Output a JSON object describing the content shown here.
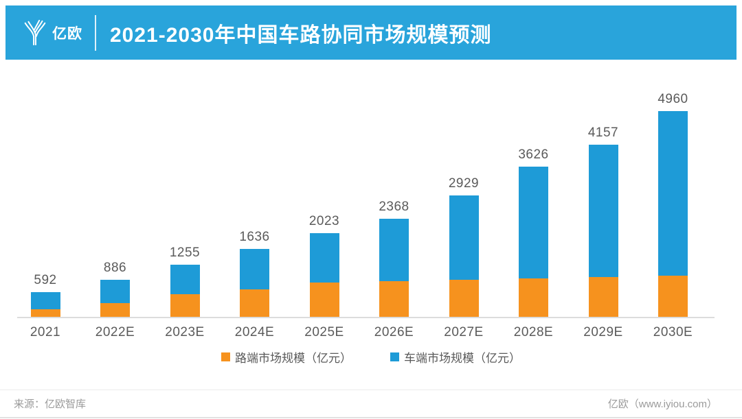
{
  "header": {
    "logo_icon": "iyiou-y-icon",
    "logo_text": "亿欧",
    "title": "2021-2030年中国车路协同市场规模预测"
  },
  "chart_data": {
    "type": "bar",
    "stacked": true,
    "title": "2021-2030年中国车路协同市场规模预测",
    "xlabel": "",
    "ylabel": "",
    "ylim": [
      0,
      5100
    ],
    "grid": false,
    "legend_position": "bottom",
    "categories": [
      "2021",
      "2022E",
      "2023E",
      "2024E",
      "2025E",
      "2026E",
      "2027E",
      "2028E",
      "2029E",
      "2030E"
    ],
    "series": [
      {
        "name": "路端市场规模（亿元）",
        "color": "#F6921E",
        "values": [
          190,
          330,
          545,
          660,
          820,
          855,
          890,
          925,
          960,
          1000
        ]
      },
      {
        "name": "车端市场规模（亿元）",
        "color": "#1E9BD7",
        "values": [
          402,
          556,
          710,
          976,
          1203,
          1513,
          2039,
          2701,
          3197,
          3960
        ]
      }
    ],
    "totals": [
      592,
      886,
      1255,
      1636,
      2023,
      2368,
      2929,
      3626,
      4157,
      4960
    ],
    "total_labels_shown": true
  },
  "colors": {
    "banner_blue": "#29A4DB",
    "bar_blue": "#1E9BD7",
    "bar_orange": "#F6921E",
    "label_gray": "#5A5A5A",
    "axis_gray": "#DCDCDC"
  },
  "footer": {
    "source": "来源：亿欧智库",
    "site": "亿欧（www.iyiou.com）"
  }
}
